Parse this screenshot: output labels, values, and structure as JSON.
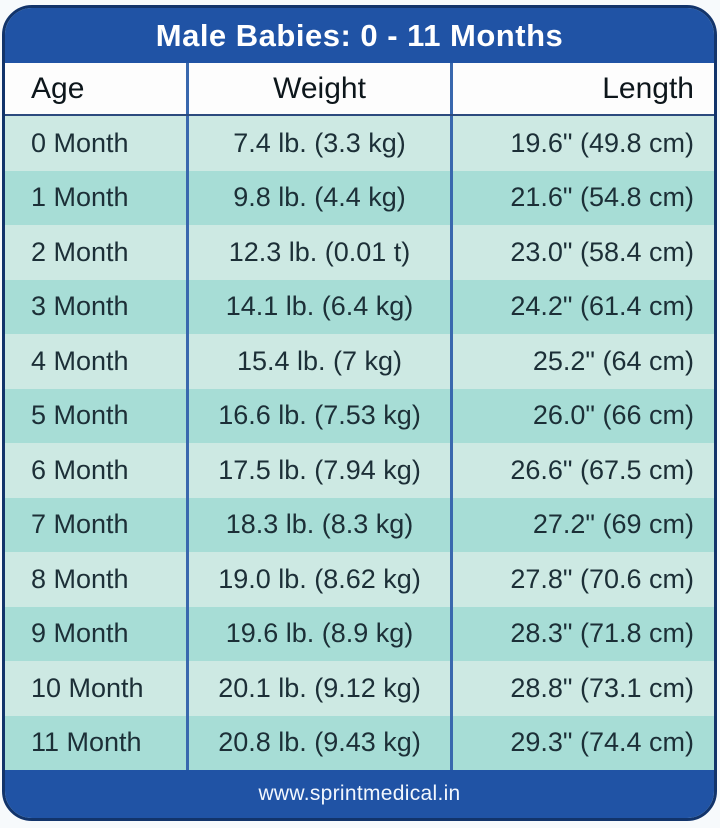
{
  "chart_data": {
    "type": "table",
    "title": "Male Babies: 0 - 11 Months",
    "columns": [
      "Age",
      "Weight",
      "Length"
    ],
    "rows": [
      {
        "age": "0 Month",
        "weight": "7.4 lb. (3.3 kg)",
        "length": "19.6\" (49.8 cm)"
      },
      {
        "age": "1 Month",
        "weight": "9.8 lb. (4.4 kg)",
        "length": "21.6\" (54.8 cm)"
      },
      {
        "age": "2 Month",
        "weight": "12.3 lb. (0.01 t)",
        "length": "23.0\" (58.4 cm)"
      },
      {
        "age": "3 Month",
        "weight": "14.1 lb. (6.4 kg)",
        "length": "24.2\" (61.4 cm)"
      },
      {
        "age": "4 Month",
        "weight": "15.4 lb. (7 kg)",
        "length": "25.2\" (64 cm)"
      },
      {
        "age": "5 Month",
        "weight": "16.6 lb. (7.53 kg)",
        "length": "26.0\" (66 cm)"
      },
      {
        "age": "6 Month",
        "weight": "17.5 lb. (7.94 kg)",
        "length": "26.6\" (67.5 cm)"
      },
      {
        "age": "7 Month",
        "weight": "18.3 lb. (8.3 kg)",
        "length": "27.2\" (69 cm)"
      },
      {
        "age": "8 Month",
        "weight": "19.0 lb. (8.62 kg)",
        "length": "27.8\" (70.6 cm)"
      },
      {
        "age": "9 Month",
        "weight": "19.6 lb. (8.9 kg)",
        "length": "28.3\" (71.8 cm)"
      },
      {
        "age": "10 Month",
        "weight": "20.1 lb. (9.12 kg)",
        "length": "28.8\" (73.1 cm)"
      },
      {
        "age": "11 Month",
        "weight": "20.8 lb. (9.43 kg)",
        "length": "29.3\" (74.4 cm)"
      }
    ]
  },
  "footer": {
    "website": "www.sprintmedical.in"
  },
  "colors": {
    "band_blue": "#2053a5",
    "border_navy": "#12346b",
    "divider_blue": "#3968ae",
    "row_light": "#cde9e3",
    "row_dark": "#a7ddd6",
    "header_bg": "#fdfdfd",
    "text_dark": "#1c2f37"
  }
}
